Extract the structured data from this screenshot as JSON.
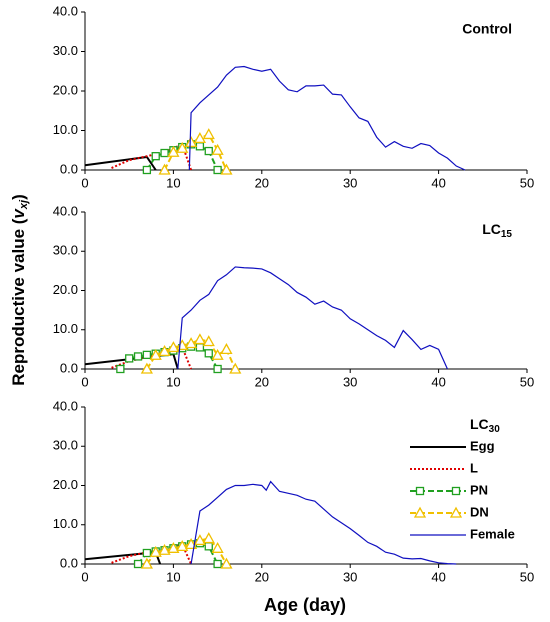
{
  "chart_data": [
    {
      "type": "line",
      "title": "Control",
      "xlim": [
        0,
        50
      ],
      "xticks": [
        0,
        10,
        20,
        30,
        40,
        50
      ],
      "ylim": [
        0,
        40
      ],
      "yticks": [
        {
          "value": 0,
          "label": "0.0"
        },
        {
          "value": 10,
          "label": "10.0"
        },
        {
          "value": 20,
          "label": "20.0"
        },
        {
          "value": 30,
          "label": "30.0"
        },
        {
          "value": 40,
          "label": "40.0"
        }
      ],
      "series": [
        {
          "name": "Egg",
          "color": "#000000",
          "x": [
            0,
            7,
            8
          ],
          "values": [
            1.2,
            3.3,
            0
          ]
        },
        {
          "name": "L",
          "color": "#e00000",
          "x": [
            3,
            5,
            7,
            9,
            10,
            11,
            12
          ],
          "values": [
            0.5,
            2.5,
            3.5,
            4.5,
            5.5,
            6.5,
            0
          ]
        },
        {
          "name": "PN",
          "color": "#20a020",
          "marker": "square",
          "x": [
            7,
            8,
            9,
            10,
            11,
            12,
            13,
            14,
            15
          ],
          "values": [
            0,
            3.5,
            4.3,
            5,
            5.8,
            6.5,
            6,
            4.8,
            0
          ]
        },
        {
          "name": "DN",
          "color": "#f0c000",
          "marker": "triangle",
          "x": [
            9,
            10,
            11,
            12,
            13,
            14,
            15,
            16
          ],
          "values": [
            0,
            4.5,
            5.5,
            7,
            8,
            9,
            5,
            0
          ]
        },
        {
          "name": "Female",
          "color": "#1010c0",
          "x": [
            11.8,
            12,
            13,
            14,
            15,
            16,
            17,
            18,
            19,
            20,
            21,
            22,
            23,
            24,
            25,
            26,
            27,
            28,
            29,
            30,
            31,
            32,
            33,
            34,
            35,
            36,
            37,
            38,
            39,
            40,
            41,
            42,
            43
          ],
          "values": [
            0,
            14.5,
            17,
            19,
            21,
            24,
            26,
            26.2,
            25.5,
            25,
            25.5,
            22.5,
            20.3,
            19.8,
            21.3,
            21.3,
            21.5,
            19.2,
            19,
            16,
            13.2,
            12.3,
            8.3,
            5.8,
            7.2,
            6,
            5.5,
            6.7,
            6.2,
            4.3,
            3,
            1,
            0
          ]
        }
      ]
    },
    {
      "type": "line",
      "title": {
        "text": "LC",
        "sub": "15"
      },
      "ylabel": {
        "text": "Reproductive  value  (",
        "var": "v",
        "sub": "xj",
        "close": ")"
      },
      "xlim": [
        0,
        50
      ],
      "xticks": [
        0,
        10,
        20,
        30,
        40,
        50
      ],
      "ylim": [
        0,
        40
      ],
      "yticks": [
        {
          "value": 0,
          "label": "0.0"
        },
        {
          "value": 10,
          "label": "10.0"
        },
        {
          "value": 20,
          "label": "20.0"
        },
        {
          "value": 30,
          "label": "30.0"
        },
        {
          "value": 40,
          "label": "40.0"
        }
      ],
      "series": [
        {
          "name": "Egg",
          "color": "#000000",
          "x": [
            0,
            10,
            10.5
          ],
          "values": [
            1.2,
            3.8,
            0
          ]
        },
        {
          "name": "L",
          "color": "#e00000",
          "x": [
            3,
            5,
            7,
            9,
            10,
            11,
            12
          ],
          "values": [
            0.3,
            2,
            3,
            4,
            5,
            5.5,
            0
          ]
        },
        {
          "name": "PN",
          "color": "#20a020",
          "marker": "square",
          "x": [
            4,
            5,
            6,
            7,
            8,
            9,
            10,
            11,
            12,
            13,
            14,
            15
          ],
          "values": [
            0,
            2.7,
            3.2,
            3.6,
            3.9,
            4.3,
            4.7,
            5.3,
            5.7,
            5.5,
            4,
            0
          ]
        },
        {
          "name": "DN",
          "color": "#f0c000",
          "marker": "triangle",
          "x": [
            7,
            8,
            9,
            10,
            11,
            12,
            13,
            14,
            15,
            16,
            17
          ],
          "values": [
            0,
            3.5,
            4.5,
            5.5,
            6,
            6.5,
            7.5,
            7,
            3.5,
            5,
            0
          ]
        },
        {
          "name": "Female",
          "color": "#1010c0",
          "x": [
            10.5,
            11,
            12,
            13,
            14,
            15,
            16,
            17,
            18,
            19,
            20,
            21,
            22,
            23,
            24,
            25,
            26,
            27,
            28,
            29,
            30,
            31,
            32,
            33,
            34,
            35,
            36,
            37,
            38,
            39,
            40,
            41
          ],
          "values": [
            0,
            13,
            15,
            17.5,
            19,
            22.5,
            24,
            26,
            25.8,
            25.7,
            25.5,
            24.5,
            23,
            21.5,
            19.5,
            18.3,
            16.5,
            17.3,
            15.8,
            15,
            12.8,
            11.5,
            10,
            8.5,
            7.3,
            5.5,
            9.8,
            7.5,
            5,
            6,
            5,
            0
          ]
        }
      ]
    },
    {
      "type": "line",
      "title": {
        "text": "LC",
        "sub": "30"
      },
      "xlabel": "Age (day)",
      "legend": "upper right",
      "xlim": [
        0,
        50
      ],
      "xticks": [
        0,
        10,
        20,
        30,
        40,
        50
      ],
      "ylim": [
        0,
        40
      ],
      "yticks": [
        {
          "value": 0,
          "label": "0.0"
        },
        {
          "value": 10,
          "label": "10.0"
        },
        {
          "value": 20,
          "label": "20.0"
        },
        {
          "value": 30,
          "label": "30.0"
        },
        {
          "value": 40,
          "label": "40.0"
        }
      ],
      "series": [
        {
          "name": "Egg",
          "color": "#000000",
          "x": [
            0,
            8,
            8.5
          ],
          "values": [
            1.2,
            3,
            0
          ]
        },
        {
          "name": "L",
          "color": "#e00000",
          "x": [
            3,
            5,
            7,
            9,
            10,
            11,
            12
          ],
          "values": [
            0.3,
            2,
            3,
            3.8,
            4.5,
            5,
            0
          ]
        },
        {
          "name": "PN",
          "color": "#20a020",
          "marker": "square",
          "x": [
            6,
            7,
            8,
            9,
            10,
            11,
            12,
            13,
            14,
            15
          ],
          "values": [
            0,
            2.8,
            3.2,
            3.5,
            4,
            4.5,
            5,
            5.3,
            4.5,
            0
          ]
        },
        {
          "name": "DN",
          "color": "#f0c000",
          "marker": "triangle",
          "x": [
            7,
            8,
            9,
            10,
            11,
            12,
            13,
            14,
            15,
            16
          ],
          "values": [
            0,
            3,
            3.5,
            4,
            4.5,
            5,
            6,
            6.5,
            4,
            0
          ]
        },
        {
          "name": "Female",
          "color": "#1010c0",
          "x": [
            12,
            13,
            14,
            15,
            16,
            17,
            18,
            19,
            20,
            20.5,
            21,
            22,
            23,
            24,
            25,
            26,
            27,
            28,
            29,
            30,
            31,
            32,
            33,
            34,
            35,
            36,
            37,
            38,
            39,
            40,
            41,
            42
          ],
          "values": [
            0,
            13.5,
            15,
            17,
            19,
            20,
            20,
            20.3,
            20,
            18.8,
            21,
            18.5,
            18,
            17.5,
            16.5,
            16,
            14,
            12,
            10.5,
            9,
            7.3,
            5.5,
            4.5,
            3,
            2.5,
            1.5,
            1.3,
            1.4,
            0.8,
            0.3,
            0.1,
            0
          ]
        }
      ]
    }
  ]
}
